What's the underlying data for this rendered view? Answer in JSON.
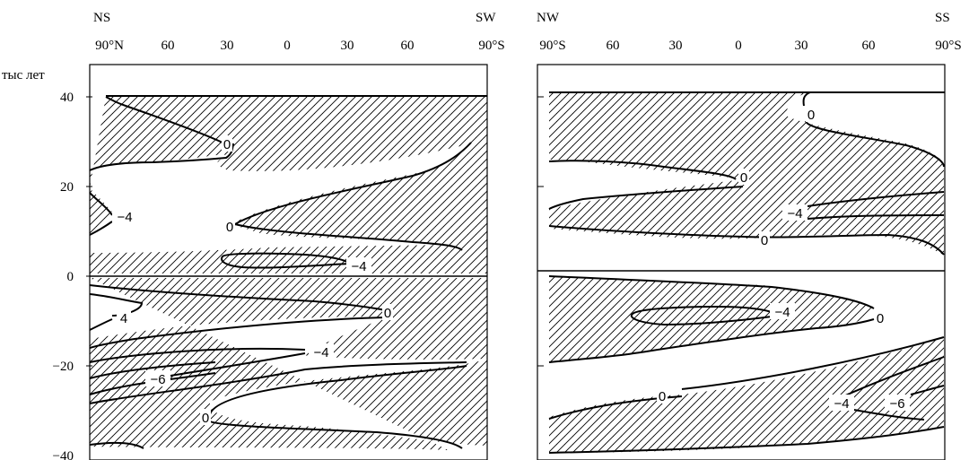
{
  "chart_data": [
    {
      "type": "contour",
      "corner_left": "NS",
      "corner_right": "SW",
      "ylabel": "тыс лет",
      "x_ticks": [
        "90°N",
        "60",
        "30",
        "0",
        "30",
        "60",
        "90°S"
      ],
      "y_ticks": [
        "40",
        "20",
        "0",
        "−20",
        "−40"
      ],
      "ylim": [
        -40,
        40
      ],
      "xlim": [
        "90°N",
        "90°S"
      ],
      "grid": false,
      "hatch": "diagonal",
      "contour_labels": [
        {
          "text": "0",
          "lat": 37,
          "age": 28.5
        },
        {
          "text": "−4",
          "lat": 77,
          "age": 13.5
        },
        {
          "text": "0",
          "lat": 25,
          "age": 11.5
        },
        {
          "text": "−4",
          "lat": -30,
          "age": 2
        },
        {
          "text": "4",
          "lat": 79,
          "age": -9.5
        },
        {
          "text": "0",
          "lat": -40,
          "age": -8
        },
        {
          "text": "−4",
          "lat": -13,
          "age": -17
        },
        {
          "text": "−6",
          "lat": 60,
          "age": -23
        },
        {
          "text": "0",
          "lat": 33,
          "age": -31.5
        }
      ]
    },
    {
      "type": "contour",
      "corner_left": "NW",
      "corner_right": "SS",
      "x_ticks": [
        "90°S",
        "60",
        "30",
        "0",
        "30",
        "60",
        "90°S"
      ],
      "ylim": [
        -40,
        40
      ],
      "grid": false,
      "hatch": "diagonal",
      "contour_labels": [
        {
          "text": "0",
          "lat": -33,
          "age": 36
        },
        {
          "text": "0",
          "lat": 3,
          "age": 22
        },
        {
          "text": "−4",
          "lat": -20,
          "age": 14
        },
        {
          "text": "0",
          "lat": -8,
          "age": 4.5
        },
        {
          "text": "−4",
          "lat": -13,
          "age": -8.5
        },
        {
          "text": "0",
          "lat": -47,
          "age": -9.5
        },
        {
          "text": "0",
          "lat": 55,
          "age": -27.5
        },
        {
          "text": "−4",
          "lat": -43,
          "age": -29
        },
        {
          "text": "−6",
          "lat": -74,
          "age": -29
        }
      ]
    }
  ]
}
